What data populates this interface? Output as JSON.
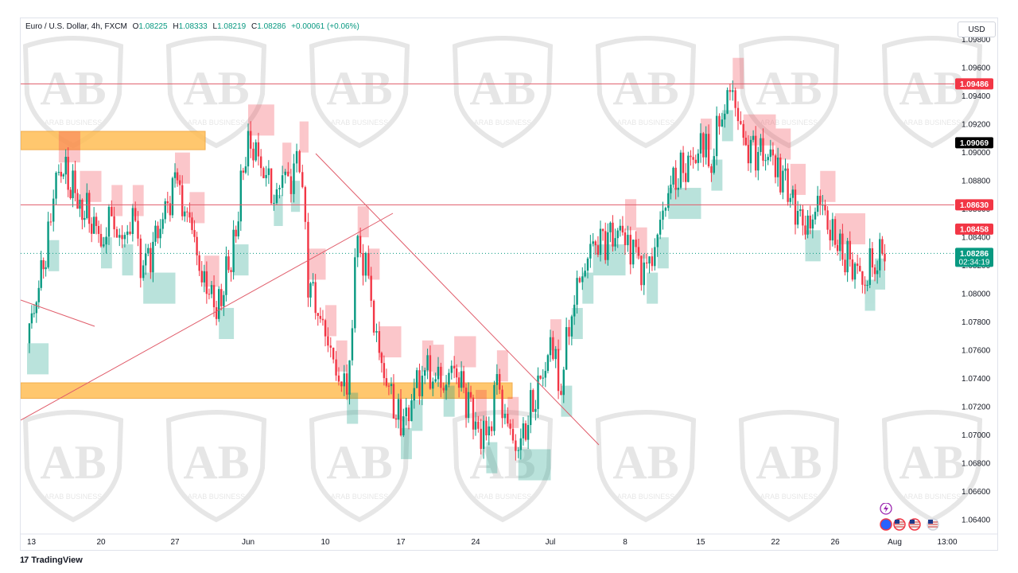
{
  "legend": {
    "symbol": "Euro / U.S. Dollar, 4h, FXCM",
    "open_label": "O",
    "open": "1.08225",
    "high_label": "H",
    "high": "1.08333",
    "low_label": "L",
    "low": "1.08219",
    "close_label": "C",
    "close": "1.08286",
    "change": "+0.00061 (+0.06%)"
  },
  "currency_button": "USD",
  "footer": {
    "brand_mark": "17",
    "brand": "TradingView"
  },
  "watermark": {
    "monogram": "AB",
    "text": "ARAB BUSINESS"
  },
  "colors": {
    "up": "#089981",
    "down": "#f23645",
    "zone": "#ffbe55",
    "level": "#e05c6a"
  },
  "chart_data": {
    "type": "candlestick",
    "title": "Euro / U.S. Dollar, 4h, FXCM",
    "ylim": [
      1.063,
      1.0995
    ],
    "y_ticks": [
      "1.09800",
      "1.09600",
      "1.09400",
      "1.09200",
      "1.09000",
      "1.08800",
      "1.08600",
      "1.08400",
      "1.08200",
      "1.08000",
      "1.07800",
      "1.07600",
      "1.07400",
      "1.07200",
      "1.07000",
      "1.06800",
      "1.06600",
      "1.06400"
    ],
    "x_ticks": [
      "13",
      "20",
      "27",
      "Jun",
      "10",
      "17",
      "24",
      "Jul",
      "8",
      "15",
      "22",
      "26",
      "Aug",
      "13:00"
    ],
    "horizontal_levels": [
      {
        "label": "1.09486",
        "value": 1.09486,
        "style": "red"
      },
      {
        "label": "1.08630",
        "value": 1.0863,
        "style": "red"
      }
    ],
    "price_labels": [
      {
        "label": "1.09069",
        "value": 1.09069,
        "style": "black"
      },
      {
        "label": "1.08458",
        "value": 1.08458,
        "style": "red"
      },
      {
        "label": "1.08286",
        "value": 1.08286,
        "style": "green",
        "countdown": "02:34:19"
      }
    ],
    "zones": [
      {
        "from": 1.0902,
        "to": 1.0915,
        "x_start": "13",
        "x_end": "27"
      },
      {
        "from": 1.0726,
        "to": 1.0737,
        "x_start": "13",
        "x_end": "Jul"
      }
    ],
    "trendlines": [
      {
        "from": [
          "13",
          1.0716
        ],
        "to": [
          "17",
          1.0857
        ]
      },
      {
        "from": [
          "Jun",
          1.0902
        ],
        "to": [
          "8",
          1.069
        ]
      },
      {
        "from": [
          "13",
          1.0792
        ],
        "to": [
          "20",
          1.0775
        ]
      }
    ],
    "price_path": [
      [
        "13",
        1.0765
      ],
      [
        "15",
        1.0838
      ],
      [
        "16",
        1.0893
      ],
      [
        "18",
        1.0865
      ],
      [
        "20",
        1.084
      ],
      [
        "21",
        1.0855
      ],
      [
        "22",
        1.0835
      ],
      [
        "23",
        1.0855
      ],
      [
        "24",
        1.0815
      ],
      [
        "27",
        1.0878
      ],
      [
        "28",
        1.085
      ],
      [
        "29",
        1.0805
      ],
      [
        "30",
        1.079
      ],
      [
        "31",
        1.0835
      ],
      [
        "Jun",
        1.0912
      ],
      [
        "4",
        1.087
      ],
      [
        "5",
        1.0885
      ],
      [
        "6",
        1.088
      ],
      [
        "7",
        1.09
      ],
      [
        "8",
        1.081
      ],
      [
        "10",
        1.077
      ],
      [
        "11",
        1.0745
      ],
      [
        "12",
        1.073
      ],
      [
        "13",
        1.084
      ],
      [
        "14",
        1.081
      ],
      [
        "15",
        1.0755
      ],
      [
        "17",
        1.0705
      ],
      [
        "18",
        1.0725
      ],
      [
        "19",
        1.0745
      ],
      [
        "20",
        1.0742
      ],
      [
        "21",
        1.0735
      ],
      [
        "22",
        1.0748
      ],
      [
        "24",
        1.071
      ],
      [
        "25",
        1.0695
      ],
      [
        "26",
        1.0738
      ],
      [
        "27",
        1.0705
      ],
      [
        "28",
        1.069
      ],
      [
        "Jul",
        1.076
      ],
      [
        "2",
        1.0735
      ],
      [
        "3",
        1.079
      ],
      [
        "4",
        1.0815
      ],
      [
        "5",
        1.0835
      ],
      [
        "8",
        1.0845
      ],
      [
        "9",
        1.0825
      ],
      [
        "10",
        1.0815
      ],
      [
        "11",
        1.084
      ],
      [
        "12",
        1.0875
      ],
      [
        "15",
        1.0902
      ],
      [
        "16",
        1.0895
      ],
      [
        "17",
        1.093
      ],
      [
        "18",
        1.0945
      ],
      [
        "19",
        1.0905
      ],
      [
        "22",
        1.0895
      ],
      [
        "23",
        1.087
      ],
      [
        "24",
        1.0845
      ],
      [
        "25",
        1.0865
      ],
      [
        "26",
        1.0835
      ],
      [
        "29",
        1.081
      ],
      [
        "30",
        1.0825
      ],
      [
        "31",
        1.0829
      ]
    ]
  }
}
